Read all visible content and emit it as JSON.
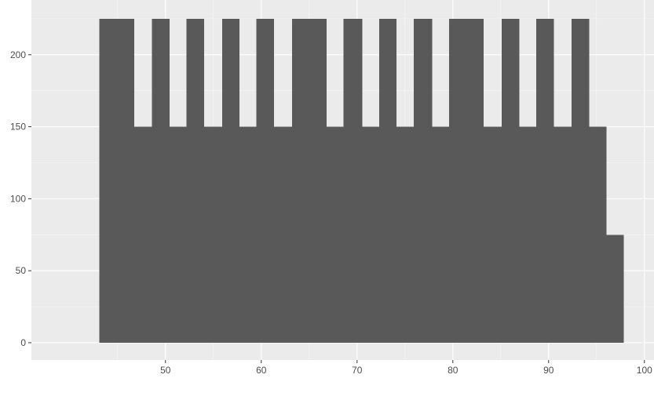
{
  "chart_data": {
    "type": "bar",
    "title": "",
    "xlabel": "",
    "ylabel": "",
    "xlim": [
      36,
      101
    ],
    "ylim": [
      -12,
      238
    ],
    "x_ticks": [
      50,
      60,
      70,
      80,
      90,
      100
    ],
    "y_ticks": [
      0,
      50,
      100,
      150,
      200
    ],
    "bin_width": 1.82,
    "series": [
      {
        "name": "count",
        "bins": [
          {
            "x0": 43.1,
            "x1": 44.9,
            "count": 225
          },
          {
            "x0": 44.9,
            "x1": 46.7,
            "count": 225
          },
          {
            "x0": 46.7,
            "x1": 48.6,
            "count": 150
          },
          {
            "x0": 48.6,
            "x1": 50.4,
            "count": 225
          },
          {
            "x0": 50.4,
            "x1": 52.2,
            "count": 150
          },
          {
            "x0": 52.2,
            "x1": 54.0,
            "count": 225
          },
          {
            "x0": 54.0,
            "x1": 55.9,
            "count": 150
          },
          {
            "x0": 55.9,
            "x1": 57.7,
            "count": 225
          },
          {
            "x0": 57.7,
            "x1": 59.5,
            "count": 150
          },
          {
            "x0": 59.5,
            "x1": 61.3,
            "count": 225
          },
          {
            "x0": 61.3,
            "x1": 63.2,
            "count": 150
          },
          {
            "x0": 63.2,
            "x1": 65.0,
            "count": 225
          },
          {
            "x0": 65.0,
            "x1": 66.8,
            "count": 225
          },
          {
            "x0": 66.8,
            "x1": 68.6,
            "count": 150
          },
          {
            "x0": 68.6,
            "x1": 70.5,
            "count": 225
          },
          {
            "x0": 70.5,
            "x1": 72.3,
            "count": 150
          },
          {
            "x0": 72.3,
            "x1": 74.1,
            "count": 225
          },
          {
            "x0": 74.1,
            "x1": 75.9,
            "count": 150
          },
          {
            "x0": 75.9,
            "x1": 77.8,
            "count": 225
          },
          {
            "x0": 77.8,
            "x1": 79.6,
            "count": 150
          },
          {
            "x0": 79.6,
            "x1": 81.4,
            "count": 225
          },
          {
            "x0": 81.4,
            "x1": 83.2,
            "count": 225
          },
          {
            "x0": 83.2,
            "x1": 85.1,
            "count": 150
          },
          {
            "x0": 85.1,
            "x1": 86.9,
            "count": 225
          },
          {
            "x0": 86.9,
            "x1": 88.7,
            "count": 150
          },
          {
            "x0": 88.7,
            "x1": 90.5,
            "count": 225
          },
          {
            "x0": 90.5,
            "x1": 92.4,
            "count": 150
          },
          {
            "x0": 92.4,
            "x1": 94.2,
            "count": 225
          },
          {
            "x0": 94.2,
            "x1": 96.0,
            "count": 150
          },
          {
            "x0": 96.0,
            "x1": 97.8,
            "count": 75
          }
        ]
      }
    ],
    "colors": {
      "panel_background": "#ebebeb",
      "grid_major": "#ffffff",
      "grid_minor": "#f5f5f5",
      "bar_fill": "#595959",
      "tick_text": "#4d4d4d",
      "tick_mark": "#333333"
    }
  }
}
